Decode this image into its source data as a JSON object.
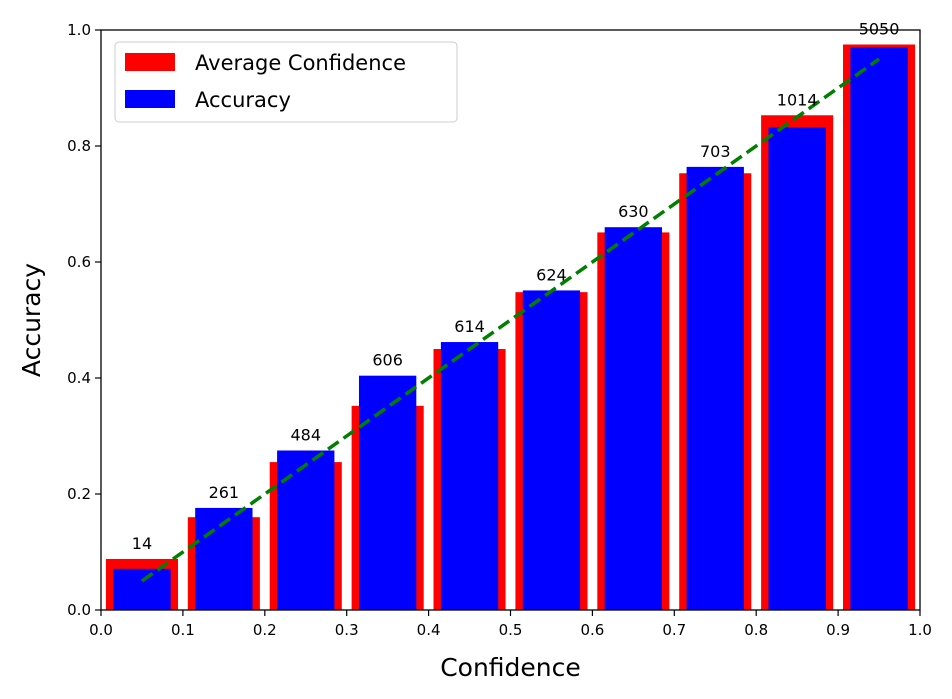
{
  "chart_data": {
    "type": "bar",
    "xlabel": "Confidence",
    "ylabel": "Accuracy",
    "xlim": [
      0.0,
      1.0
    ],
    "ylim": [
      0.0,
      1.0
    ],
    "xticks": [
      "0.0",
      "0.1",
      "0.2",
      "0.3",
      "0.4",
      "0.5",
      "0.6",
      "0.7",
      "0.8",
      "0.9",
      "1.0"
    ],
    "yticks": [
      "0.0",
      "0.2",
      "0.4",
      "0.6",
      "0.8",
      "1.0"
    ],
    "grid": false,
    "legend_position": "top-left",
    "bin_starts": [
      0.0,
      0.1,
      0.2,
      0.3,
      0.4,
      0.5,
      0.6,
      0.7,
      0.8,
      0.9
    ],
    "bin_width": 0.1,
    "counts": [
      "14",
      "261",
      "484",
      "606",
      "614",
      "624",
      "630",
      "703",
      "1014",
      "5050"
    ],
    "series": [
      {
        "name": "Average Confidence",
        "color": "#ff0000",
        "values": [
          0.088,
          0.16,
          0.255,
          0.352,
          0.45,
          0.548,
          0.651,
          0.753,
          0.853,
          0.975
        ]
      },
      {
        "name": "Accuracy",
        "color": "#0000ff",
        "values": [
          0.071,
          0.176,
          0.275,
          0.404,
          0.462,
          0.551,
          0.66,
          0.764,
          0.832,
          0.97
        ]
      }
    ],
    "trend_line": {
      "color": "#008000",
      "style": "dashed",
      "x": [
        0.05,
        0.95
      ],
      "y": [
        0.05,
        0.95
      ]
    }
  }
}
